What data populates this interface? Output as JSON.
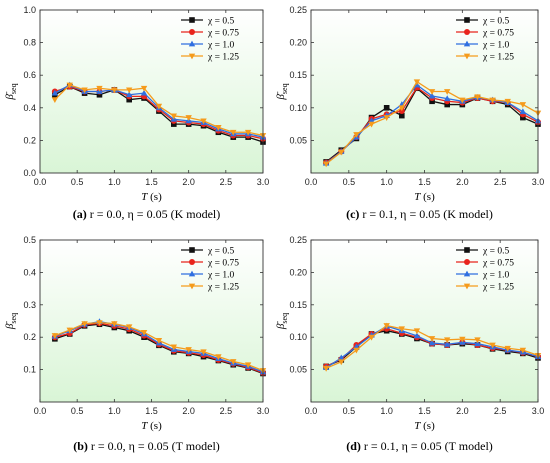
{
  "legend_symbol": "χ",
  "colors": {
    "0.5": "#111111",
    "0.75": "#e8241c",
    "1.0": "#2f6fe0",
    "1.25": "#f59b1c"
  },
  "markers": {
    "0.5": "square",
    "0.75": "circle",
    "1.0": "triangle-up",
    "1.25": "triangle-down"
  },
  "background": {
    "top": "#ffffff",
    "bottom": "#d9f5d6"
  },
  "chart_data": [
    {
      "panel": "a",
      "type": "line",
      "caption": {
        "label": "(a)",
        "text": "r = 0.0, η = 0.05 (K model)"
      },
      "xlabel": "T (s)",
      "ylabel": "β̄seq",
      "xlim": [
        0.0,
        3.0
      ],
      "ylim": [
        0.0,
        1.0
      ],
      "xticks": [
        "0.0",
        "0.5",
        "1.0",
        "1.5",
        "2.0",
        "2.5",
        "3.0"
      ],
      "yticks": [
        "0.0",
        "0.2",
        "0.4",
        "0.6",
        "0.8",
        "1.0"
      ],
      "x": [
        0.2,
        0.4,
        0.6,
        0.8,
        1.0,
        1.2,
        1.4,
        1.6,
        1.8,
        2.0,
        2.2,
        2.4,
        2.6,
        2.8,
        3.0
      ],
      "series": [
        {
          "name": "χ = 0.5",
          "values": [
            0.48,
            0.53,
            0.49,
            0.48,
            0.51,
            0.45,
            0.46,
            0.38,
            0.3,
            0.3,
            0.29,
            0.25,
            0.22,
            0.22,
            0.19
          ]
        },
        {
          "name": "χ = 0.75",
          "values": [
            0.5,
            0.53,
            0.5,
            0.5,
            0.51,
            0.47,
            0.47,
            0.39,
            0.32,
            0.31,
            0.3,
            0.26,
            0.23,
            0.23,
            0.21
          ]
        },
        {
          "name": "χ = 1.0",
          "values": [
            0.49,
            0.54,
            0.5,
            0.5,
            0.51,
            0.48,
            0.49,
            0.4,
            0.33,
            0.32,
            0.31,
            0.27,
            0.24,
            0.24,
            0.22
          ]
        },
        {
          "name": "χ = 1.25",
          "values": [
            0.45,
            0.54,
            0.51,
            0.52,
            0.51,
            0.51,
            0.52,
            0.41,
            0.35,
            0.34,
            0.32,
            0.28,
            0.25,
            0.25,
            0.23
          ]
        }
      ]
    },
    {
      "panel": "c",
      "type": "line",
      "caption": {
        "label": "(c)",
        "text": "r = 0.1, η = 0.05 (K model)"
      },
      "xlabel": "T (s)",
      "ylabel": "β̄seq",
      "xlim": [
        0.0,
        3.0
      ],
      "ylim": [
        0.0,
        0.25
      ],
      "xticks": [
        "0.0",
        "0.5",
        "1.0",
        "1.5",
        "2.0",
        "2.5",
        "3.0"
      ],
      "yticks": [
        "0.05",
        "0.10",
        "0.15",
        "0.20",
        "0.25"
      ],
      "x": [
        0.2,
        0.4,
        0.6,
        0.8,
        1.0,
        1.2,
        1.4,
        1.6,
        1.8,
        2.0,
        2.2,
        2.4,
        2.6,
        2.8,
        3.0
      ],
      "series": [
        {
          "name": "χ = 0.5",
          "values": [
            0.017,
            0.035,
            0.053,
            0.085,
            0.1,
            0.088,
            0.13,
            0.11,
            0.105,
            0.105,
            0.115,
            0.11,
            0.105,
            0.085,
            0.075
          ]
        },
        {
          "name": "χ = 0.75",
          "values": [
            0.016,
            0.033,
            0.055,
            0.083,
            0.09,
            0.095,
            0.131,
            0.115,
            0.11,
            0.108,
            0.115,
            0.11,
            0.108,
            0.09,
            0.078
          ]
        },
        {
          "name": "χ = 1.0",
          "values": [
            0.015,
            0.033,
            0.055,
            0.08,
            0.088,
            0.105,
            0.135,
            0.118,
            0.114,
            0.11,
            0.116,
            0.112,
            0.108,
            0.094,
            0.08
          ]
        },
        {
          "name": "χ = 1.25",
          "values": [
            0.014,
            0.032,
            0.059,
            0.075,
            0.085,
            0.1,
            0.14,
            0.125,
            0.125,
            0.112,
            0.117,
            0.112,
            0.11,
            0.105,
            0.092
          ]
        }
      ]
    },
    {
      "panel": "b",
      "type": "line",
      "caption": {
        "label": "(b)",
        "text": "r = 0.0, η = 0.05 (T model)"
      },
      "xlabel": "T (s)",
      "ylabel": "β̄seq",
      "xlim": [
        0.0,
        3.0
      ],
      "ylim": [
        0.0,
        0.5
      ],
      "xticks": [
        "0.0",
        "0.5",
        "1.0",
        "1.5",
        "2.0",
        "2.5",
        "3.0"
      ],
      "yticks": [
        "0.1",
        "0.2",
        "0.3",
        "0.4",
        "0.5"
      ],
      "x": [
        0.2,
        0.4,
        0.6,
        0.8,
        1.0,
        1.2,
        1.4,
        1.6,
        1.8,
        2.0,
        2.2,
        2.4,
        2.6,
        2.8,
        3.0
      ],
      "series": [
        {
          "name": "χ = 0.5",
          "values": [
            0.195,
            0.21,
            0.235,
            0.24,
            0.23,
            0.22,
            0.2,
            0.175,
            0.155,
            0.15,
            0.14,
            0.128,
            0.115,
            0.105,
            0.088
          ]
        },
        {
          "name": "χ = 0.75",
          "values": [
            0.2,
            0.212,
            0.238,
            0.243,
            0.235,
            0.225,
            0.205,
            0.178,
            0.158,
            0.152,
            0.145,
            0.13,
            0.118,
            0.107,
            0.09
          ]
        },
        {
          "name": "χ = 1.0",
          "values": [
            0.203,
            0.22,
            0.24,
            0.248,
            0.24,
            0.23,
            0.21,
            0.182,
            0.162,
            0.156,
            0.15,
            0.134,
            0.12,
            0.11,
            0.093
          ]
        },
        {
          "name": "χ = 1.25",
          "values": [
            0.205,
            0.222,
            0.242,
            0.245,
            0.242,
            0.232,
            0.215,
            0.19,
            0.17,
            0.162,
            0.155,
            0.14,
            0.125,
            0.115,
            0.097
          ]
        }
      ]
    },
    {
      "panel": "d",
      "type": "line",
      "caption": {
        "label": "(d)",
        "text": "r = 0.1, η = 0.05 (T model)"
      },
      "xlabel": "T (s)",
      "ylabel": "β̄seq",
      "xlim": [
        0.0,
        3.0
      ],
      "ylim": [
        0.0,
        0.25
      ],
      "xticks": [
        "0.0",
        "0.5",
        "1.0",
        "1.5",
        "2.0",
        "2.5",
        "3.0"
      ],
      "yticks": [
        "0.05",
        "0.10",
        "0.15",
        "0.20",
        "0.25"
      ],
      "x": [
        0.2,
        0.4,
        0.6,
        0.8,
        1.0,
        1.2,
        1.4,
        1.6,
        1.8,
        2.0,
        2.2,
        2.4,
        2.6,
        2.8,
        3.0
      ],
      "series": [
        {
          "name": "χ = 0.5",
          "values": [
            0.055,
            0.065,
            0.085,
            0.105,
            0.11,
            0.105,
            0.098,
            0.09,
            0.088,
            0.09,
            0.088,
            0.082,
            0.078,
            0.075,
            0.068
          ]
        },
        {
          "name": "χ = 0.75",
          "values": [
            0.055,
            0.066,
            0.088,
            0.105,
            0.113,
            0.106,
            0.1,
            0.09,
            0.088,
            0.092,
            0.088,
            0.083,
            0.08,
            0.076,
            0.07
          ]
        },
        {
          "name": "χ = 1.0",
          "values": [
            0.053,
            0.068,
            0.085,
            0.103,
            0.117,
            0.11,
            0.102,
            0.091,
            0.089,
            0.092,
            0.09,
            0.085,
            0.08,
            0.077,
            0.07
          ]
        },
        {
          "name": "χ = 1.25",
          "values": [
            0.052,
            0.062,
            0.08,
            0.1,
            0.118,
            0.113,
            0.11,
            0.098,
            0.096,
            0.097,
            0.096,
            0.088,
            0.083,
            0.08,
            0.072
          ]
        }
      ]
    }
  ]
}
